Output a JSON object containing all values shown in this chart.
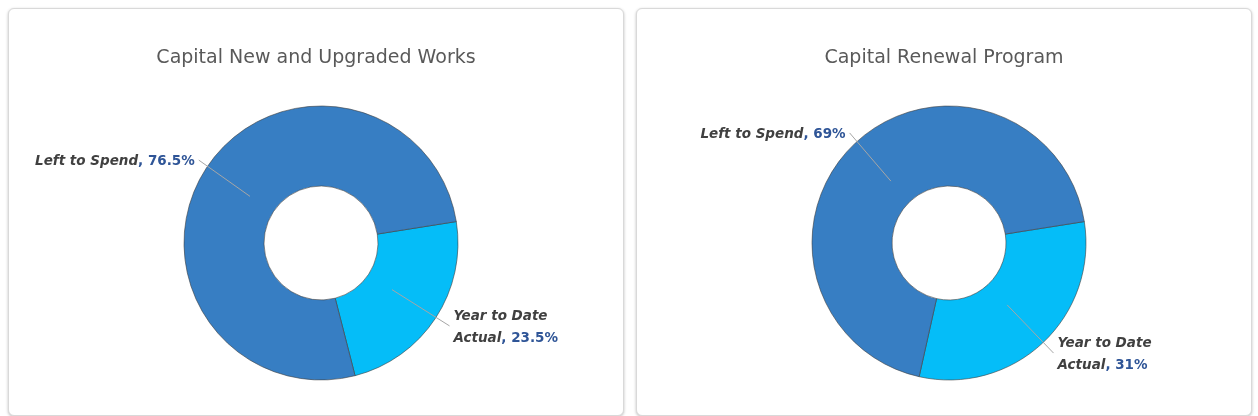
{
  "chart_data": [
    {
      "type": "donut",
      "title": "Capital New and Upgraded Works",
      "categories": [
        "Year to Date Actual",
        "Left to Spend"
      ],
      "values": [
        23.5,
        76.5
      ],
      "colors": [
        "#05bdf8",
        "#377ec3"
      ],
      "value_labels": [
        ", 23.5%",
        ", 76.5%"
      ]
    },
    {
      "type": "donut",
      "title": "Capital Renewal Program",
      "categories": [
        "Year to Date Actual",
        "Left to Spend"
      ],
      "values": [
        31,
        69
      ],
      "colors": [
        "#05bdf8",
        "#377ec3"
      ],
      "value_labels": [
        ", 31%",
        ", 69%"
      ]
    }
  ]
}
